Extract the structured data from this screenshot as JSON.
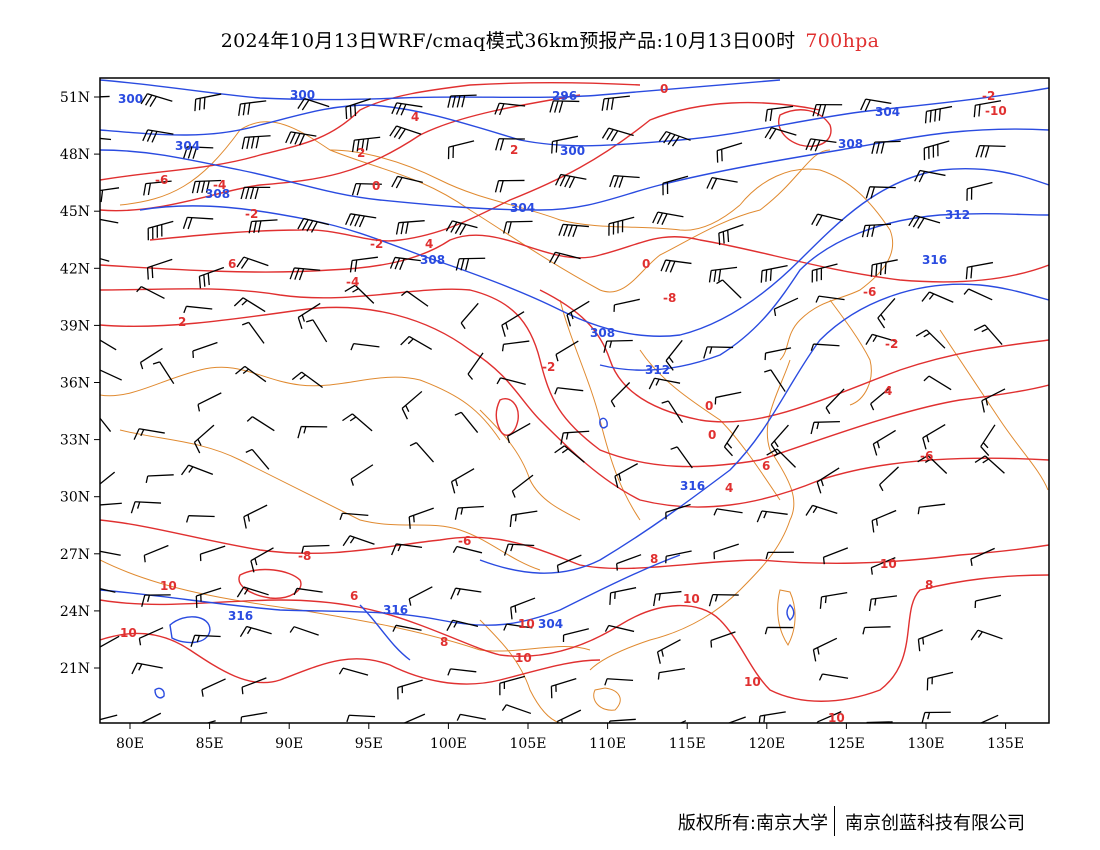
{
  "map": {
    "title_main": "2024年10月13日WRF/cmaq模式36km预报产品:10月13日00时",
    "title_level": "700hpa",
    "level_color": "#e03030",
    "lat_ticks": [
      "51N",
      "48N",
      "45N",
      "42N",
      "39N",
      "36N",
      "33N",
      "30N",
      "27N",
      "24N",
      "21N"
    ],
    "lon_ticks": [
      "80E",
      "85E",
      "90E",
      "95E",
      "100E",
      "105E",
      "110E",
      "115E",
      "120E",
      "125E",
      "130E",
      "135E"
    ],
    "height_labels": [
      "300",
      "300",
      "296",
      "304",
      "304",
      "300",
      "308",
      "308",
      "304",
      "308",
      "312",
      "316",
      "312",
      "316",
      "316",
      "316",
      "308",
      "304"
    ],
    "temp_labels": [
      "0",
      "-10",
      "-2",
      "4",
      "2",
      "2",
      "0",
      "-6",
      "-4",
      "-2",
      "-2",
      "4",
      "6",
      "2",
      "0",
      "-4",
      "-8",
      "-6",
      "-2",
      "0",
      "0",
      "-2",
      "4",
      "-6",
      "6",
      "4",
      "-8",
      "-6",
      "8",
      "10",
      "6",
      "8",
      "10",
      "10",
      "8",
      "10",
      "10",
      "10",
      "10",
      "10"
    ],
    "colors": {
      "height_contour": "#2a4be0",
      "temp_contour": "#e03030",
      "boundary": "#e08a30",
      "barb": "#000000",
      "frame": "#000000"
    },
    "credit_left": "版权所有:南京大学",
    "credit_right": "南京创蓝科技有限公司"
  }
}
